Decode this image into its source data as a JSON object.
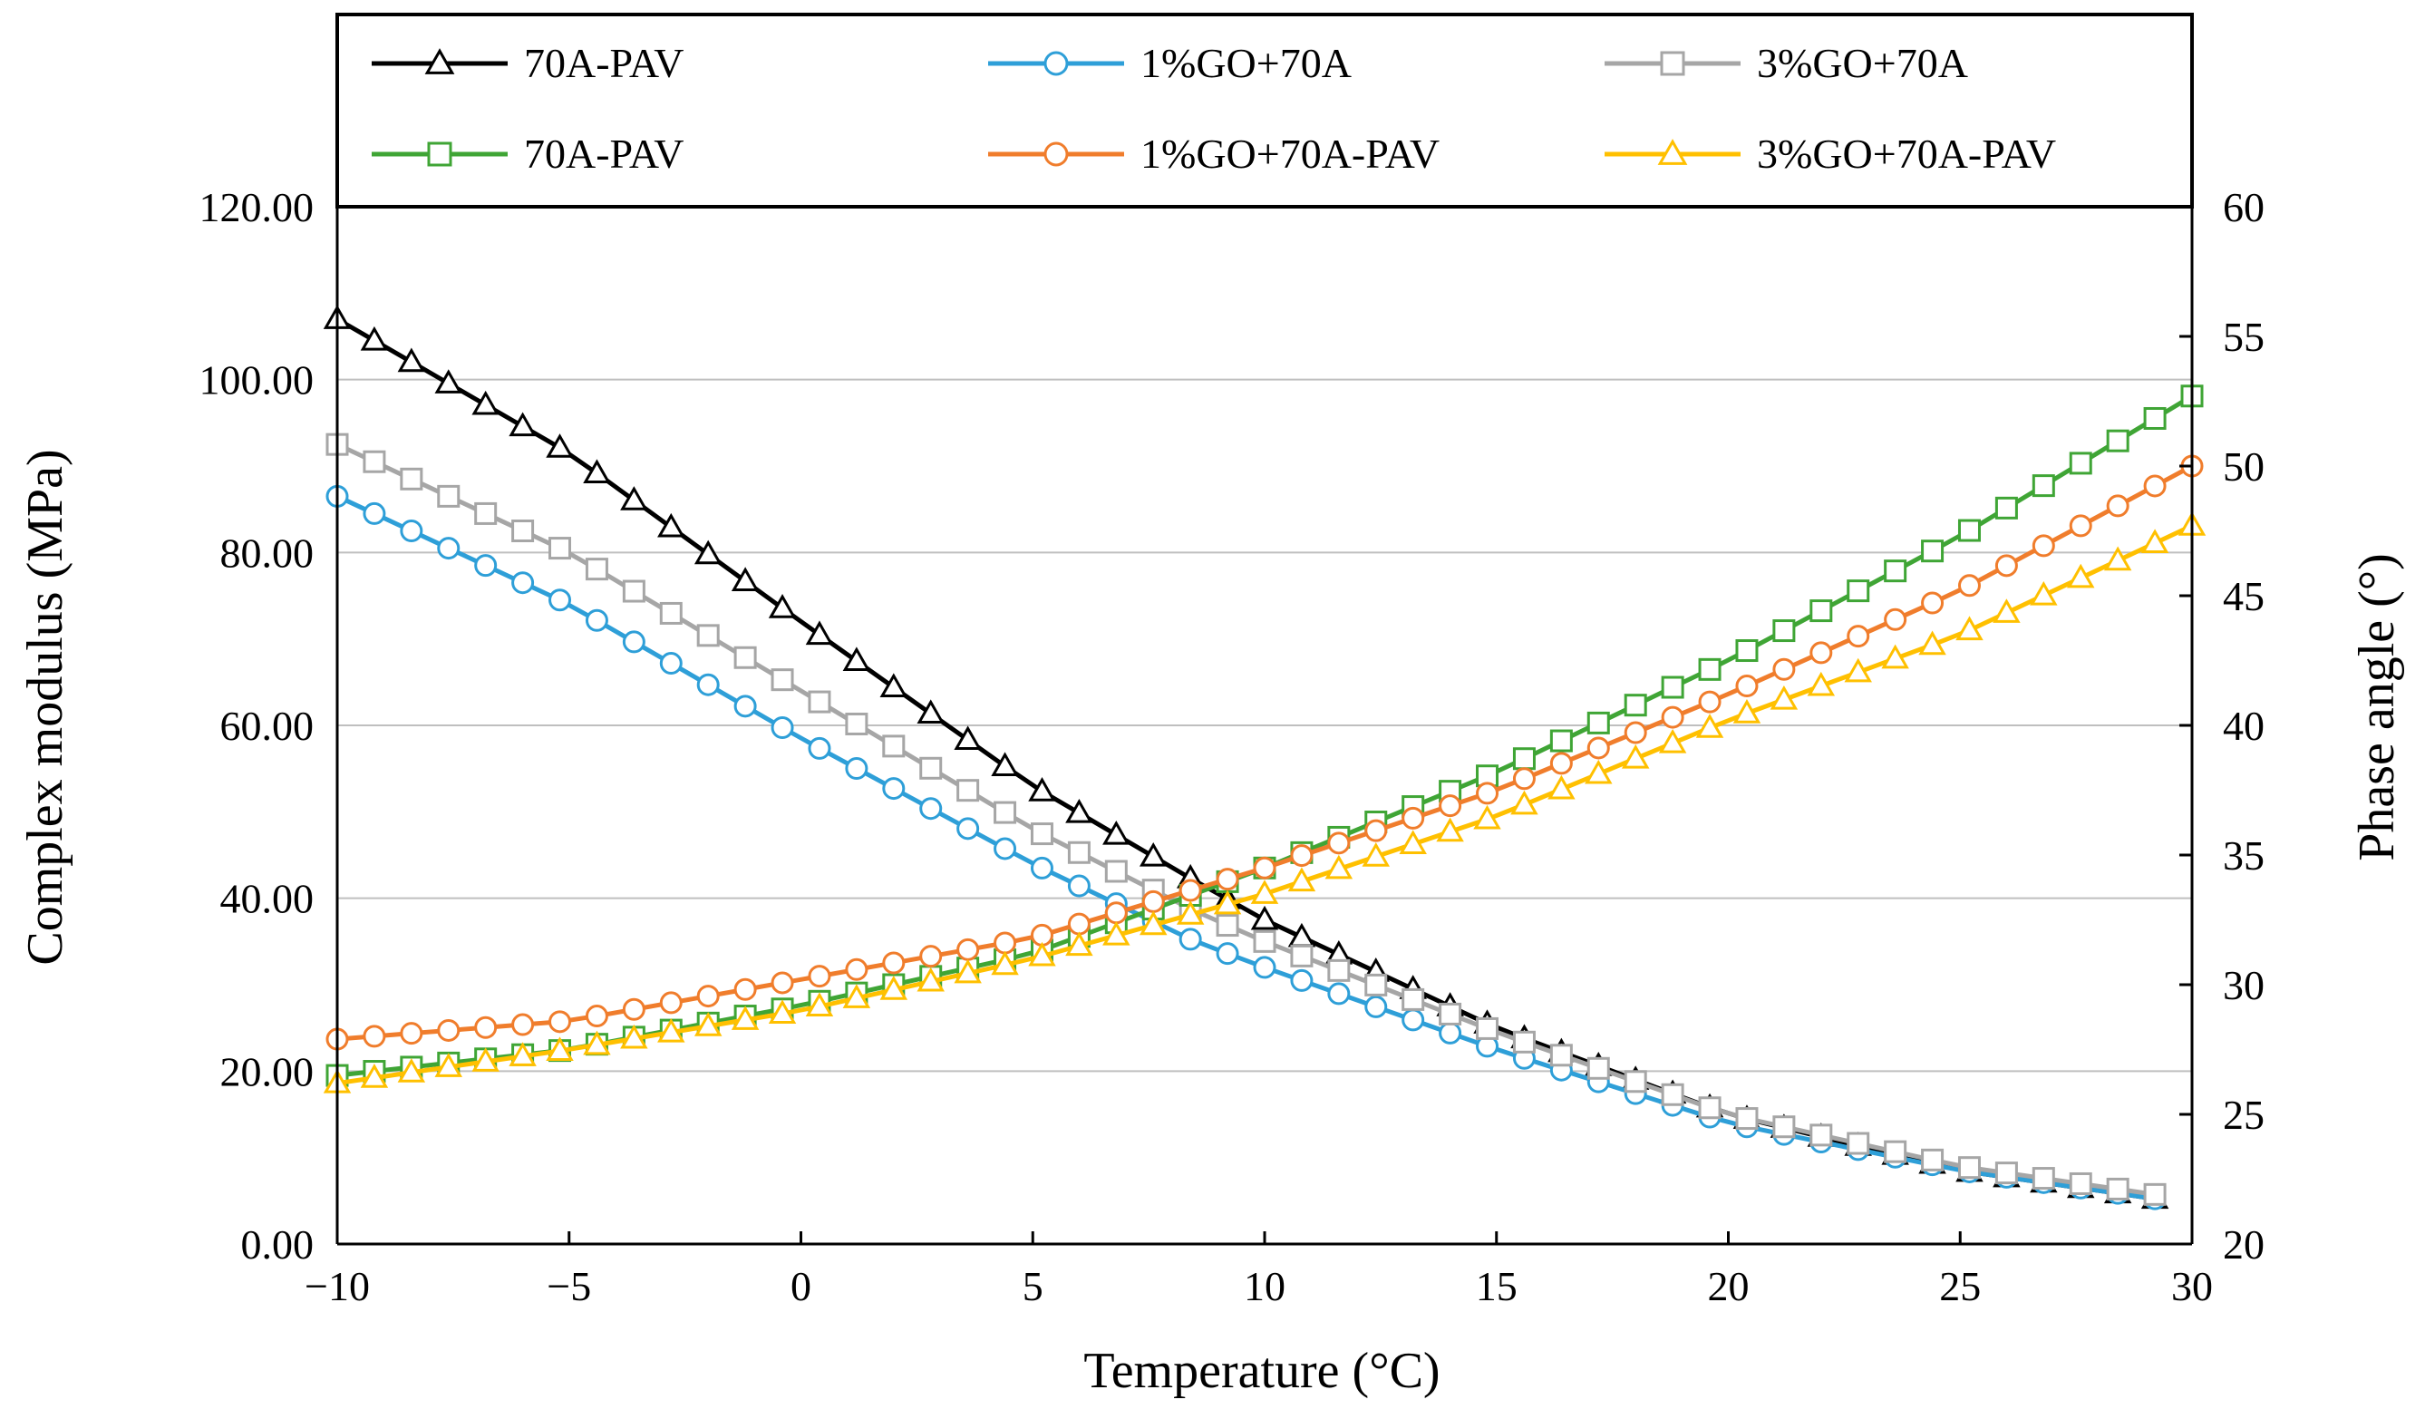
{
  "chart_data": {
    "type": "line",
    "xlabel": "Temperature (°C)",
    "ylabel_left": "Complex modulus (MPa)",
    "ylabel_right": "Phase angle (°)",
    "xlim": [
      -10,
      30
    ],
    "ylim_left": [
      0,
      120
    ],
    "ylim_right": [
      20,
      60
    ],
    "x_ticks": [
      -10,
      -5,
      0,
      5,
      10,
      15,
      20,
      25,
      30
    ],
    "x_tick_labels": [
      "−10",
      "−5",
      "0",
      "5",
      "10",
      "15",
      "20",
      "25",
      "30"
    ],
    "y_left_ticks": [
      0,
      20,
      40,
      60,
      80,
      100,
      120
    ],
    "y_left_tick_labels": [
      "0.00",
      "20.00",
      "40.00",
      "60.00",
      "80.00",
      "100.00",
      "120.00"
    ],
    "y_right_ticks": [
      20,
      25,
      30,
      35,
      40,
      45,
      50,
      55,
      60
    ],
    "y_right_tick_labels": [
      "20",
      "25",
      "30",
      "35",
      "40",
      "45",
      "50",
      "55",
      "60"
    ],
    "grid": "horizontal",
    "legend_position": "top",
    "x_range": {
      "start": -10,
      "end": 29.5,
      "step": 0.8
    },
    "series": [
      {
        "name": "70A-PAV",
        "axis": "left",
        "color": "#000000",
        "marker": "triangle",
        "keypoints": [
          [
            -10,
            107
          ],
          [
            -5,
            91.5
          ],
          [
            0,
            72
          ],
          [
            5,
            53
          ],
          [
            8.5,
            42
          ],
          [
            10,
            37.5
          ],
          [
            15,
            25
          ],
          [
            20,
            15
          ],
          [
            25,
            8.5
          ],
          [
            29.5,
            5
          ]
        ]
      },
      {
        "name": "1%GO+70A",
        "axis": "left",
        "color": "#2e9fd8",
        "marker": "circle",
        "keypoints": [
          [
            -10,
            86.5
          ],
          [
            -5,
            74
          ],
          [
            0,
            58.5
          ],
          [
            5,
            44
          ],
          [
            8.5,
            35
          ],
          [
            10,
            32
          ],
          [
            15,
            22.5
          ],
          [
            20,
            14
          ],
          [
            25,
            8.5
          ],
          [
            29.5,
            5
          ]
        ]
      },
      {
        "name": "3%GO+70A",
        "axis": "left",
        "color": "#a6a6a6",
        "marker": "square",
        "keypoints": [
          [
            -10,
            92.5
          ],
          [
            -5,
            80
          ],
          [
            0,
            64
          ],
          [
            5,
            48
          ],
          [
            8.5,
            38.5
          ],
          [
            10,
            35
          ],
          [
            15,
            24.5
          ],
          [
            20,
            15
          ],
          [
            25,
            9
          ],
          [
            29.5,
            5.5
          ]
        ]
      },
      {
        "name": "70A-PAV",
        "axis": "right",
        "color": "#3fa535",
        "marker": "square",
        "keypoints": [
          [
            -10,
            26.5
          ],
          [
            -5,
            27.5
          ],
          [
            0,
            29.2
          ],
          [
            5,
            31.2
          ],
          [
            10,
            34.5
          ],
          [
            15,
            38.2
          ],
          [
            20,
            42.5
          ],
          [
            25,
            47.3
          ],
          [
            30,
            52.7
          ]
        ]
      },
      {
        "name": "1%GO+70A-PAV",
        "axis": "right",
        "color": "#f07d2c",
        "marker": "circle",
        "keypoints": [
          [
            -10,
            27.9
          ],
          [
            -5,
            28.6
          ],
          [
            0,
            30.2
          ],
          [
            5,
            31.8
          ],
          [
            10,
            34.5
          ],
          [
            15,
            37.5
          ],
          [
            20,
            41.2
          ],
          [
            25,
            45.2
          ],
          [
            30,
            50
          ]
        ]
      },
      {
        "name": "3%GO+70A-PAV",
        "axis": "right",
        "color": "#ffc000",
        "marker": "triangle",
        "keypoints": [
          [
            -10,
            26.2
          ],
          [
            -5,
            27.5
          ],
          [
            0,
            29
          ],
          [
            5,
            31
          ],
          [
            10,
            33.5
          ],
          [
            15,
            36.5
          ],
          [
            20,
            40.2
          ],
          [
            25,
            43.5
          ],
          [
            30,
            47.7
          ]
        ]
      }
    ]
  }
}
